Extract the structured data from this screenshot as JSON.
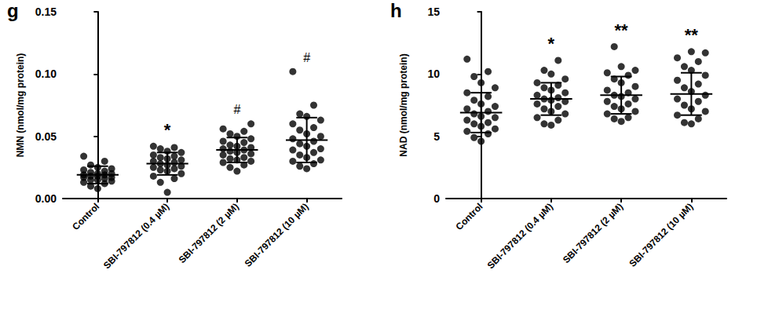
{
  "chart_data": [
    {
      "type": "scatter",
      "title": "g",
      "y_label": "NMN (nmol/mg protein)",
      "categories": [
        "Control",
        "SBI-797812 (0.4 µM)",
        "SBI-797812 (2 µM)",
        "SBI-797812 (10 µM)"
      ],
      "values": [
        [
          0.008,
          0.01,
          0.012,
          0.013,
          0.014,
          0.015,
          0.015,
          0.016,
          0.017,
          0.017,
          0.018,
          0.018,
          0.019,
          0.019,
          0.02,
          0.02,
          0.021,
          0.022,
          0.023,
          0.024,
          0.025,
          0.027,
          0.03,
          0.034
        ],
        [
          0.005,
          0.013,
          0.016,
          0.018,
          0.02,
          0.022,
          0.023,
          0.024,
          0.025,
          0.026,
          0.027,
          0.028,
          0.029,
          0.03,
          0.031,
          0.032,
          0.033,
          0.034,
          0.035,
          0.037,
          0.038,
          0.04,
          0.041,
          0.042
        ],
        [
          0.022,
          0.025,
          0.027,
          0.029,
          0.03,
          0.031,
          0.032,
          0.033,
          0.035,
          0.036,
          0.037,
          0.038,
          0.039,
          0.04,
          0.041,
          0.042,
          0.043,
          0.045,
          0.046,
          0.048,
          0.05,
          0.052,
          0.054,
          0.056,
          0.06
        ],
        [
          0.024,
          0.026,
          0.028,
          0.03,
          0.031,
          0.033,
          0.035,
          0.037,
          0.039,
          0.04,
          0.042,
          0.044,
          0.046,
          0.048,
          0.05,
          0.052,
          0.055,
          0.057,
          0.06,
          0.063,
          0.066,
          0.068,
          0.075,
          0.102
        ]
      ],
      "means": [
        0.019,
        0.028,
        0.039,
        0.047
      ],
      "sd": [
        0.007,
        0.009,
        0.01,
        0.018
      ],
      "annotations": [
        null,
        "*",
        "#",
        "#"
      ],
      "color": "#000000",
      "marker": "circle",
      "grid": false,
      "ylim": [
        0,
        0.15
      ],
      "yticks": [
        {
          "value": 0,
          "label": "0.00"
        },
        {
          "value": 0.05,
          "label": "0.05"
        },
        {
          "value": 0.1,
          "label": "0.10"
        },
        {
          "value": 0.15,
          "label": "0.15"
        }
      ]
    },
    {
      "type": "scatter",
      "title": "h",
      "y_label": "NAD (nmol/mg protein)",
      "categories": [
        "Control",
        "SBI-797812 (0.4 µM)",
        "SBI-797812 (2 µM)",
        "SBI-797812 (10 µM)"
      ],
      "values": [
        [
          4.6,
          4.9,
          5.2,
          5.4,
          5.6,
          5.8,
          6.0,
          6.1,
          6.3,
          6.5,
          6.6,
          6.8,
          7.0,
          7.2,
          7.4,
          7.6,
          7.9,
          8.2,
          8.5,
          8.9,
          9.3,
          9.8,
          10.2,
          11.2
        ],
        [
          5.9,
          6.0,
          6.3,
          6.5,
          6.8,
          7.0,
          7.2,
          7.4,
          7.6,
          7.8,
          7.9,
          8.0,
          8.1,
          8.3,
          8.5,
          8.7,
          8.9,
          9.1,
          9.3,
          9.6,
          10.0,
          10.3,
          11.1
        ],
        [
          6.2,
          6.4,
          6.5,
          6.8,
          7.0,
          7.2,
          7.4,
          7.6,
          7.8,
          8.0,
          8.2,
          8.3,
          8.5,
          8.7,
          9.0,
          9.3,
          9.6,
          9.9,
          10.1,
          10.3,
          10.6,
          12.2
        ],
        [
          6.0,
          6.1,
          6.4,
          6.7,
          7.0,
          7.2,
          7.5,
          7.8,
          8.0,
          8.3,
          8.6,
          8.9,
          9.2,
          9.5,
          9.9,
          10.3,
          10.6,
          11.0,
          11.3,
          11.7,
          11.8
        ]
      ],
      "means": [
        6.9,
        8.0,
        8.3,
        8.4
      ],
      "sd": [
        1.6,
        1.3,
        1.5,
        1.7
      ],
      "annotations": [
        null,
        "*",
        "**",
        "**"
      ],
      "color": "#000000",
      "marker": "circle",
      "grid": false,
      "ylim": [
        0,
        15
      ],
      "yticks": [
        0,
        5,
        10,
        15
      ]
    }
  ]
}
